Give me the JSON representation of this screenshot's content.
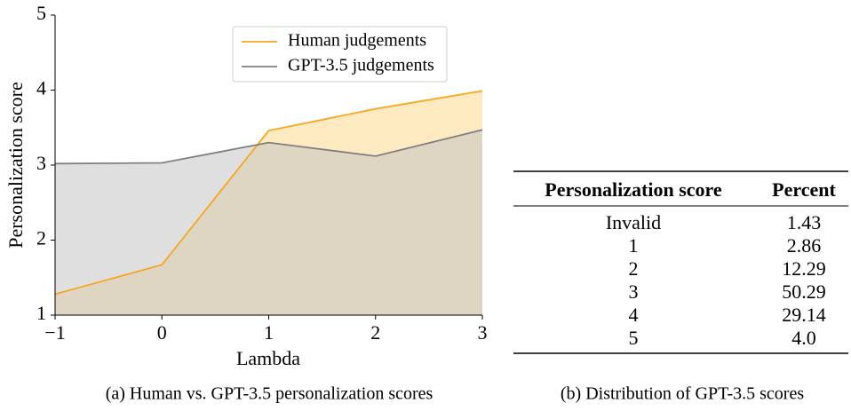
{
  "chart_data": {
    "type": "line",
    "x": [
      -1,
      0,
      1,
      2,
      3
    ],
    "series": [
      {
        "name": "Human judgements",
        "color": "#f5a623",
        "fill": "#fcd98c",
        "values": [
          1.28,
          1.67,
          3.46,
          3.75,
          3.99
        ]
      },
      {
        "name": "GPT-3.5 judgements",
        "color": "#808080",
        "fill": "#c4c4c4",
        "values": [
          3.02,
          3.03,
          3.3,
          3.12,
          3.47
        ]
      }
    ],
    "xlabel": "Lambda",
    "ylabel": "Personalization score",
    "xlim": [
      -1,
      3
    ],
    "xticks": [
      {
        "value": -1,
        "label": "−1"
      },
      0,
      1,
      2,
      3
    ],
    "ylim": [
      1,
      5
    ],
    "yticks": [
      1,
      2,
      3,
      4,
      5
    ],
    "legend": "upper right",
    "area": true,
    "caption": "(a) Human vs. GPT-3.5 personalization scores"
  },
  "table": {
    "headers": [
      "Personalization score",
      "Percent"
    ],
    "rows": [
      [
        "Invalid",
        "1.43"
      ],
      [
        "1",
        "2.86"
      ],
      [
        "2",
        "12.29"
      ],
      [
        "3",
        "50.29"
      ],
      [
        "4",
        "29.14"
      ],
      [
        "5",
        "4.0"
      ]
    ],
    "caption": "(b) Distribution of GPT-3.5 scores"
  }
}
